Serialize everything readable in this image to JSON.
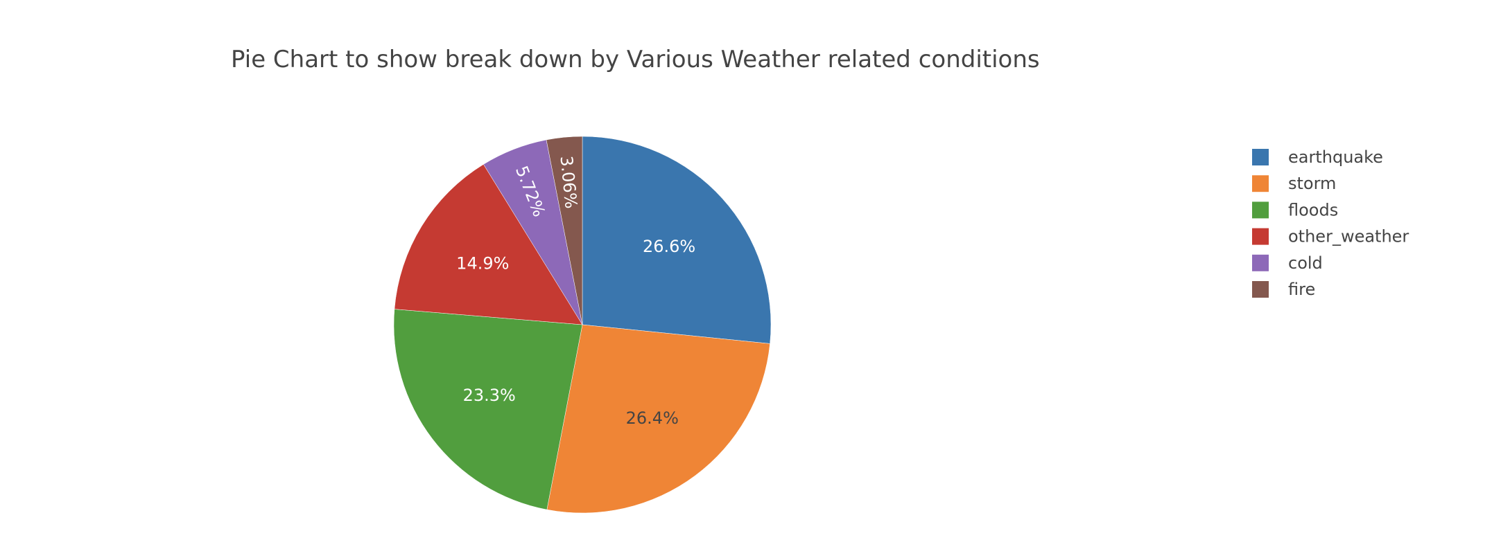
{
  "chart_data": {
    "type": "pie",
    "title": "Pie Chart to show break down by Various Weather related conditions",
    "sort": "descending",
    "direction": "clockwise",
    "start_angle": "12 o'clock",
    "legend_position": "top-right",
    "slices": [
      {
        "label": "earthquake",
        "percent": 26.6,
        "display": "26.6%",
        "color": "#3a76ae",
        "text_color": "#ffffff"
      },
      {
        "label": "storm",
        "percent": 26.4,
        "display": "26.4%",
        "color": "#ef8536",
        "text_color": "#444444"
      },
      {
        "label": "floods",
        "percent": 23.3,
        "display": "23.3%",
        "color": "#519e3e",
        "text_color": "#ffffff"
      },
      {
        "label": "other_weather",
        "percent": 14.9,
        "display": "14.9%",
        "color": "#c53a32",
        "text_color": "#ffffff"
      },
      {
        "label": "cold",
        "percent": 5.72,
        "display": "5.72%",
        "color": "#8d69b8",
        "text_color": "#ffffff"
      },
      {
        "label": "fire",
        "percent": 3.06,
        "display": "3.06%",
        "color": "#84584e",
        "text_color": "#ffffff"
      }
    ],
    "legend_order": [
      "earthquake",
      "storm",
      "floods",
      "other_weather",
      "cold",
      "fire"
    ]
  }
}
